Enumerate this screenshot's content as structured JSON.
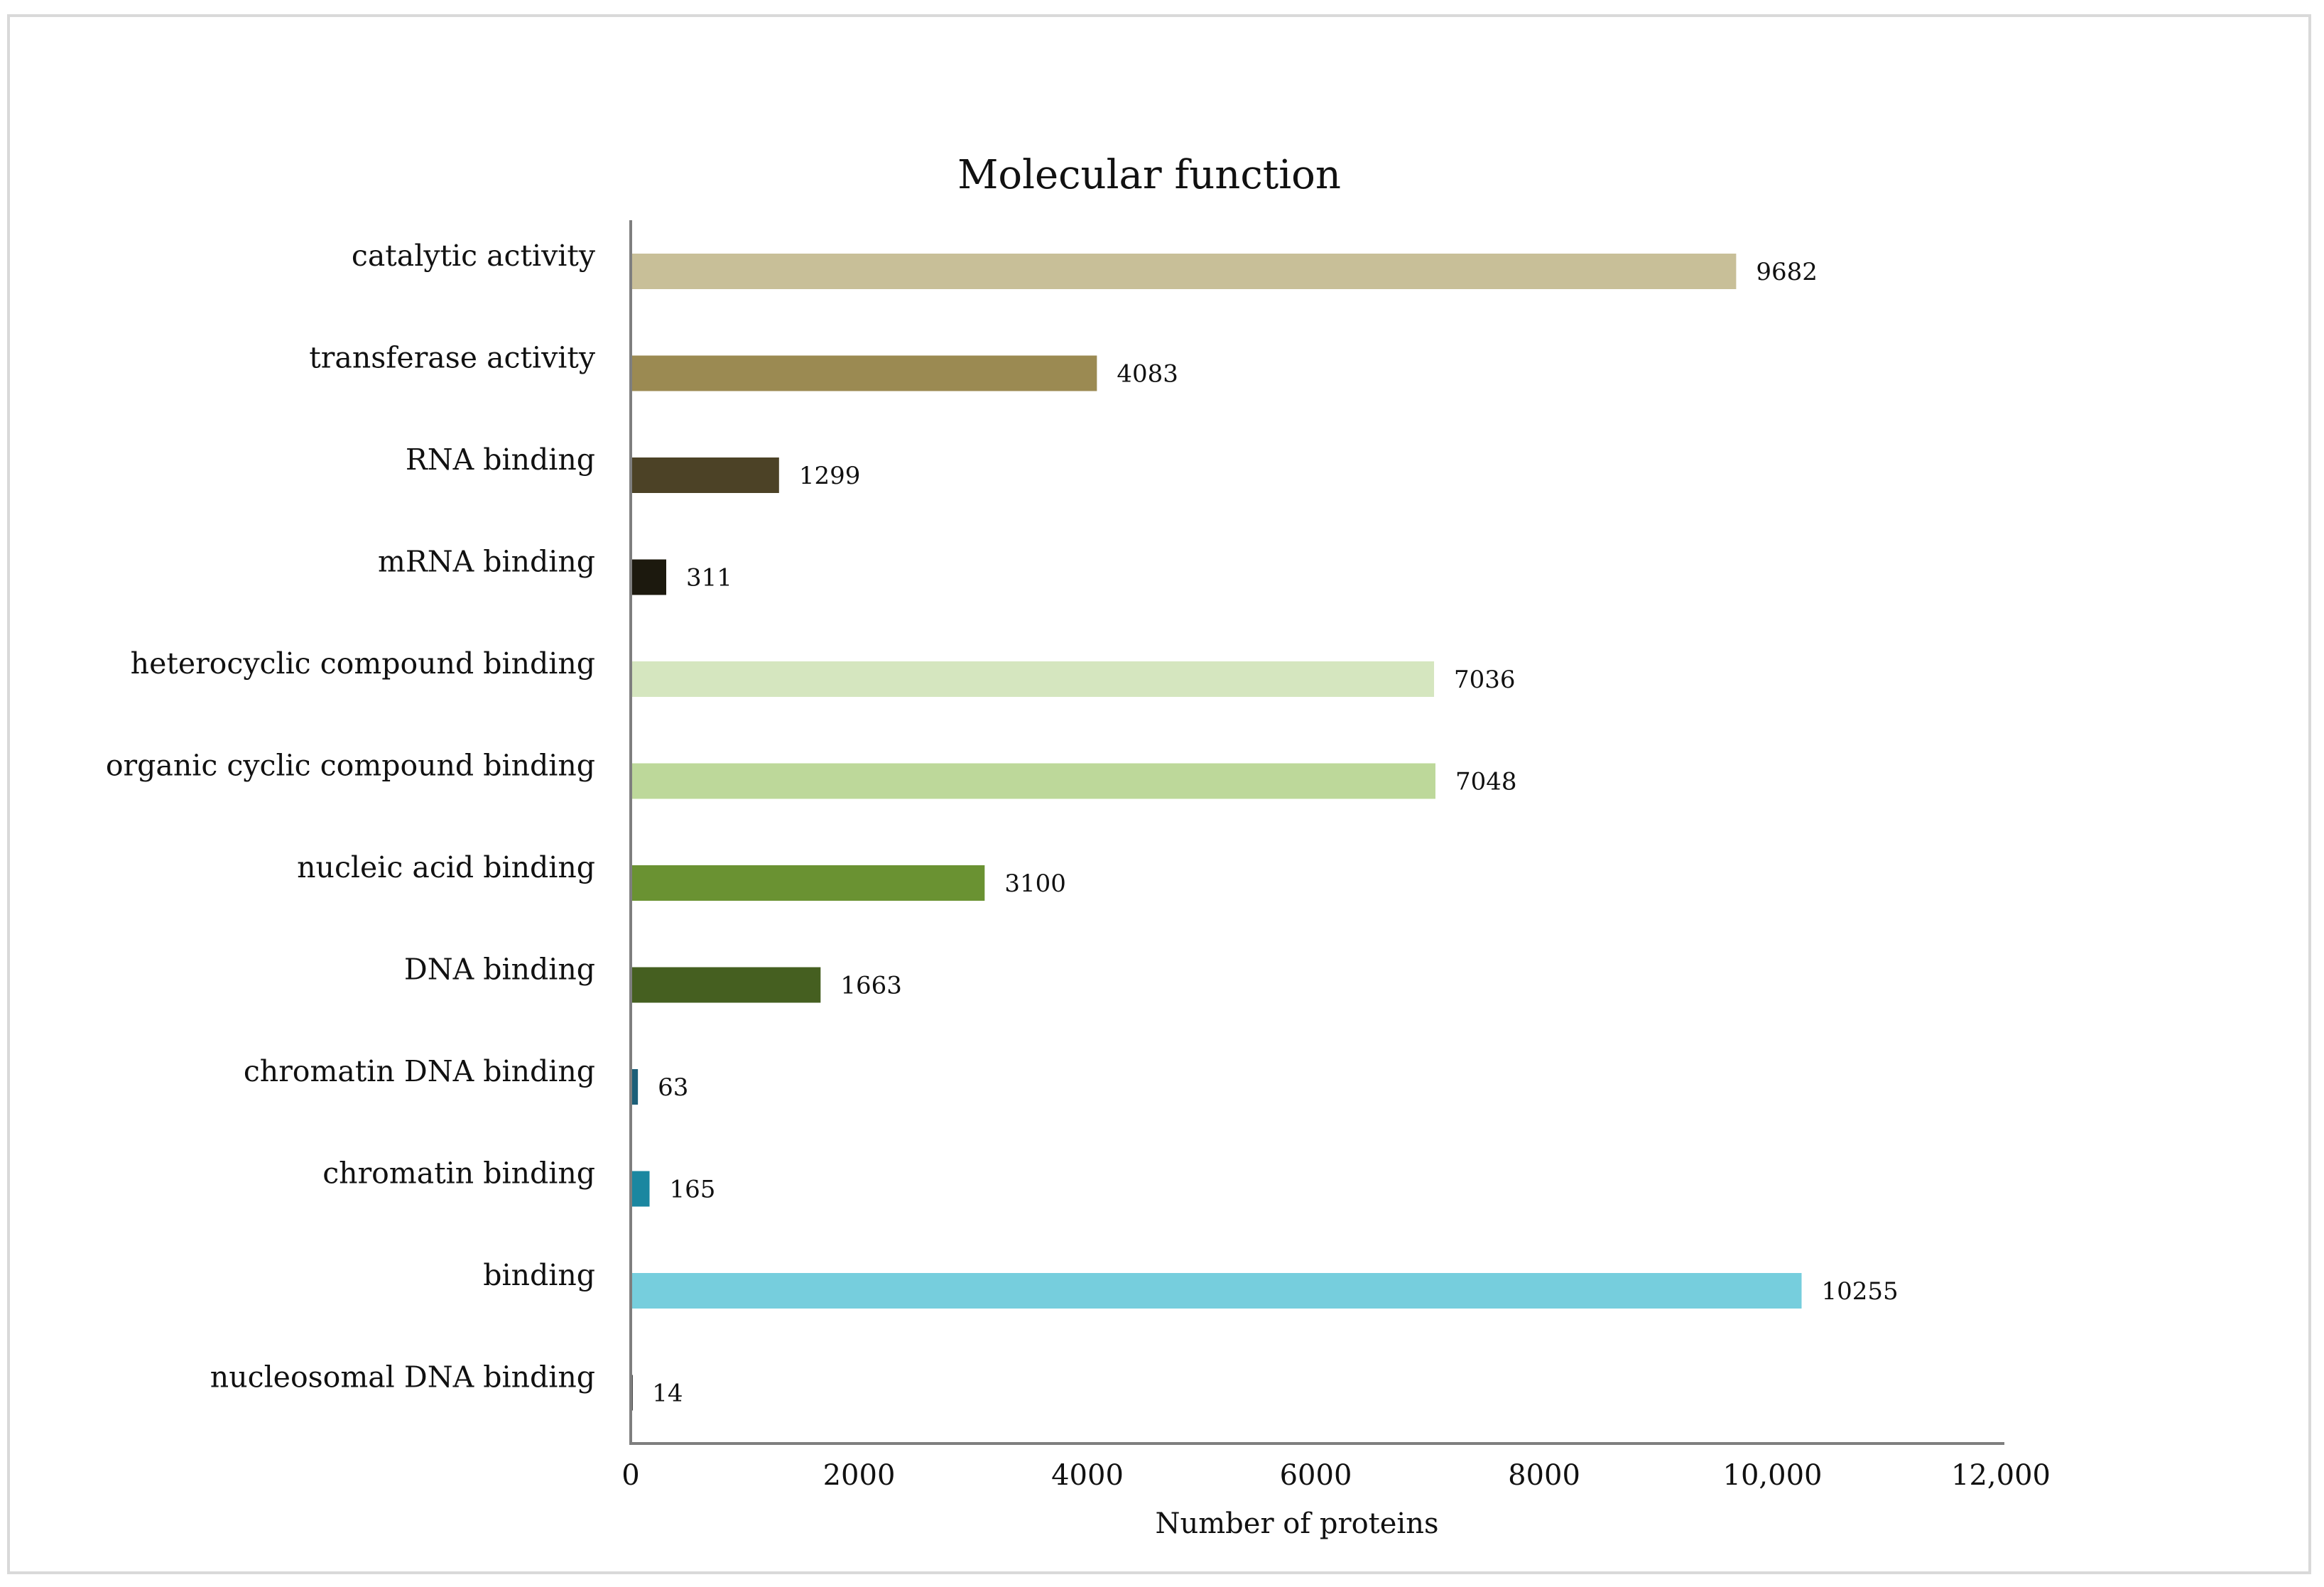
{
  "chart_data": {
    "type": "bar",
    "orientation": "horizontal",
    "title": "Molecular function",
    "xlabel": "Number of proteins",
    "ylabel": "",
    "xlim": [
      0,
      12000
    ],
    "xticks": [
      0,
      2000,
      4000,
      6000,
      8000,
      10000,
      12000
    ],
    "xtick_labels": [
      "0",
      "2000",
      "4000",
      "6000",
      "8000",
      "10,000",
      "12,000"
    ],
    "grid": false,
    "legend": "none",
    "categories": [
      "catalytic activity",
      "transferase activity",
      "RNA binding",
      "mRNA binding",
      "heterocyclic compound binding",
      "organic cyclic compound binding",
      "nucleic acid binding",
      "DNA binding",
      "chromatin DNA binding",
      "chromatin binding",
      "binding",
      "nucleosomal DNA binding"
    ],
    "values": [
      9682,
      4083,
      1299,
      311,
      7036,
      7048,
      3100,
      1663,
      63,
      165,
      10255,
      14
    ],
    "value_labels": [
      "9682",
      "4083",
      "1299",
      "311",
      "7036",
      "7048",
      "3100",
      "1663",
      "63",
      "165",
      "10255",
      "14"
    ],
    "colors": [
      "#c8bf98",
      "#9b8a52",
      "#4c4226",
      "#1c190e",
      "#d5e6bf",
      "#bdd89a",
      "#6a9232",
      "#455f20",
      "#1c5f78",
      "#1b87a0",
      "#76cedd",
      "#4a4a4a"
    ]
  }
}
